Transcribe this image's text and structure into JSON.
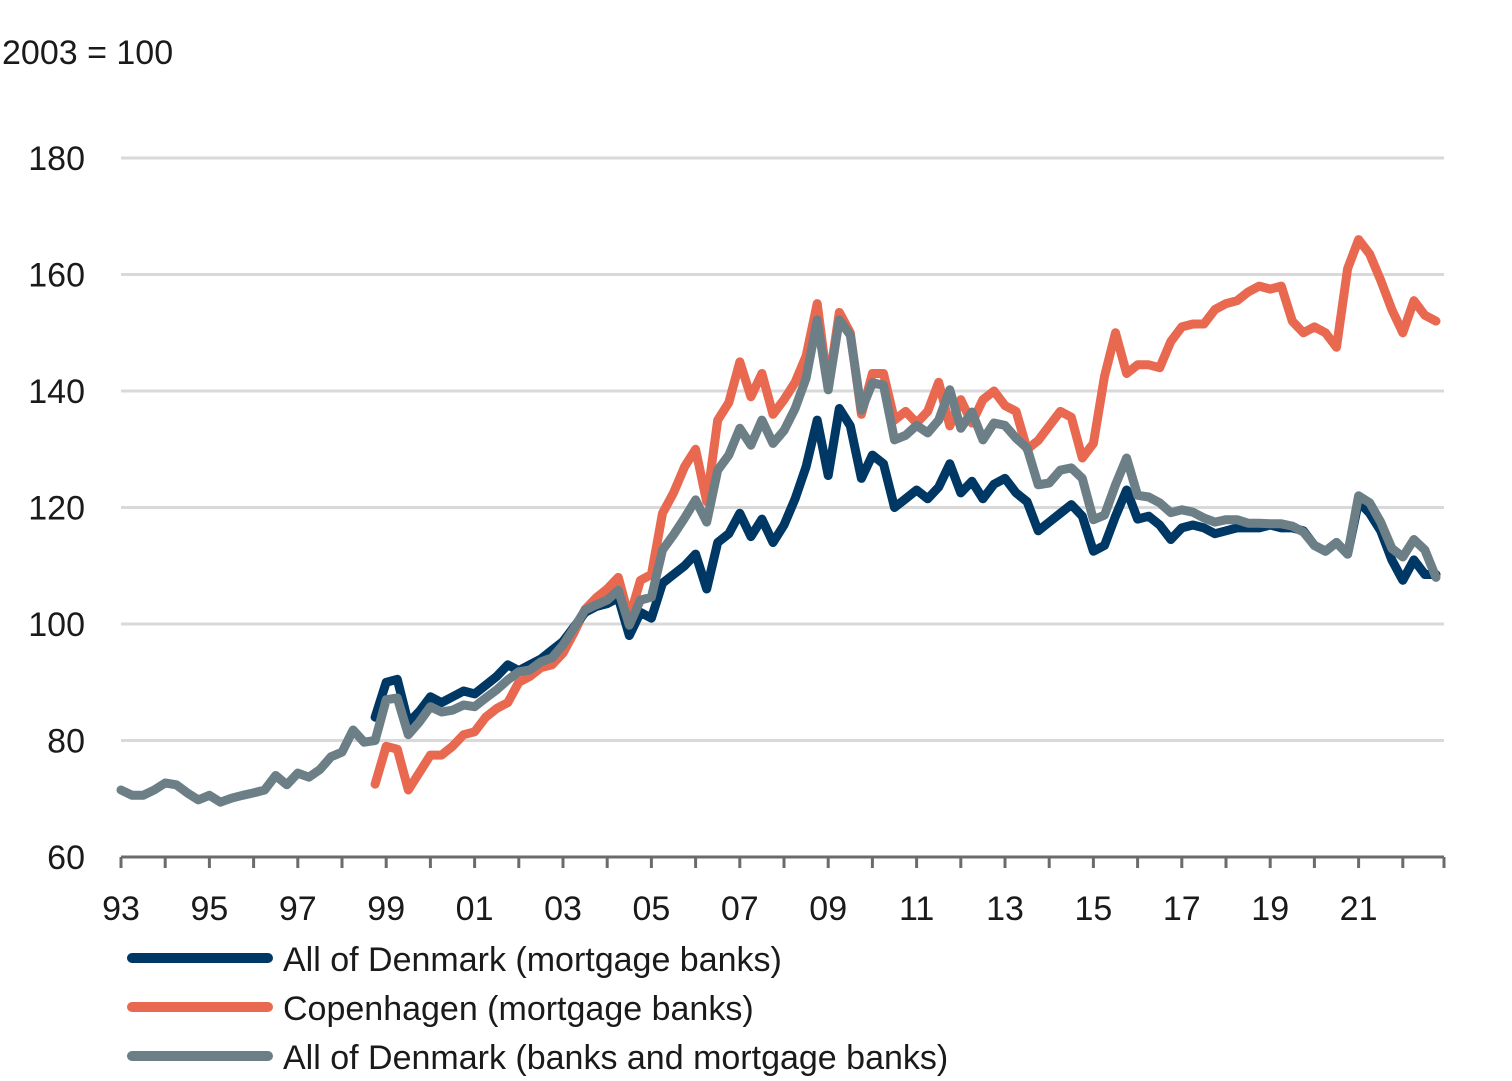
{
  "chart_data": {
    "type": "line",
    "unit_label": "2003 = 100",
    "xlabel": "",
    "ylabel": "",
    "ylim": [
      60,
      180
    ],
    "yticks": [
      60,
      80,
      100,
      120,
      140,
      160,
      180
    ],
    "xlim": [
      1993,
      2023
    ],
    "xtick_labels": [
      {
        "year": 1993,
        "label": "93"
      },
      {
        "year": 1995,
        "label": "95"
      },
      {
        "year": 1997,
        "label": "97"
      },
      {
        "year": 1999,
        "label": "99"
      },
      {
        "year": 2001,
        "label": "01"
      },
      {
        "year": 2003,
        "label": "03"
      },
      {
        "year": 2005,
        "label": "05"
      },
      {
        "year": 2007,
        "label": "07"
      },
      {
        "year": 2009,
        "label": "09"
      },
      {
        "year": 2011,
        "label": "11"
      },
      {
        "year": 2013,
        "label": "13"
      },
      {
        "year": 2015,
        "label": "15"
      },
      {
        "year": 2017,
        "label": "17"
      },
      {
        "year": 2019,
        "label": "19"
      },
      {
        "year": 2021,
        "label": "21"
      }
    ],
    "grid": true,
    "legend_position": "bottom-left",
    "frequency": "quarterly",
    "series": [
      {
        "name": "Copenhagen (mortgage banks)",
        "color": "#E8694F",
        "start": 1998.75,
        "values": [
          72.5,
          79,
          78.5,
          71.5,
          74.5,
          77.5,
          77.5,
          79,
          81,
          81.5,
          84,
          85.5,
          86.5,
          90,
          91,
          92.5,
          93,
          95,
          98.5,
          102.5,
          104.5,
          106,
          108,
          101,
          107.5,
          108.5,
          119,
          122.5,
          127,
          130,
          121,
          135,
          138,
          145,
          139,
          143,
          136,
          138.5,
          141.5,
          146,
          155,
          140.5,
          153.5,
          150,
          136,
          143,
          143,
          135,
          136.5,
          134.5,
          136.5,
          141.5,
          134,
          138.5,
          134.5,
          138.5,
          140,
          137.5,
          136.5,
          130,
          131.5,
          134,
          136.5,
          135.5,
          128.5,
          131,
          142.5,
          150,
          143,
          144.5,
          144.5,
          144,
          148.5,
          151,
          151.5,
          151.5,
          154,
          155,
          155.5,
          157,
          158,
          157.5,
          158,
          152,
          150,
          151,
          150,
          147.5,
          161,
          166,
          163.5,
          159,
          154,
          150,
          155.5,
          153,
          152
        ]
      },
      {
        "name": "All of Denmark (mortgage banks)",
        "color": "#003865",
        "start": 1998.75,
        "values": [
          84,
          90,
          90.5,
          83,
          85,
          87.5,
          86.5,
          87.5,
          88.5,
          88,
          89.5,
          91,
          93,
          92,
          93,
          94,
          95.5,
          97,
          99.5,
          102,
          103,
          103.5,
          104.5,
          98,
          102,
          101,
          107,
          108.5,
          110,
          112,
          106,
          114,
          115.5,
          119,
          115,
          118,
          114,
          117,
          121.5,
          127,
          135,
          125.5,
          137,
          134,
          125,
          129,
          127.5,
          120,
          121.5,
          123,
          121.5,
          123.5,
          127.5,
          122.5,
          124.5,
          121.5,
          124,
          125,
          122.5,
          121,
          116,
          117.5,
          119,
          120.5,
          118.5,
          112.5,
          113.5,
          118.5,
          123,
          118,
          118.5,
          117,
          114.5,
          116.5,
          117,
          116.5,
          115.5,
          116,
          116.5,
          116.5,
          116.5,
          117,
          116.5,
          116.5,
          116,
          113.5,
          112.5,
          114,
          112,
          121,
          119,
          116,
          111,
          107.5,
          111,
          108.5,
          108.5
        ]
      },
      {
        "name": "All of Denmark (banks and mortgage banks)",
        "color": "#6C7F86",
        "start": 1993.0,
        "values": [
          71.5,
          70.6,
          70.6,
          71.5,
          72.7,
          72.4,
          71,
          69.8,
          70.6,
          69.4,
          70.1,
          70.6,
          71,
          71.5,
          74,
          72.4,
          74.4,
          73.7,
          75,
          77.2,
          78,
          81.8,
          79.7,
          80,
          87,
          87.3,
          81,
          83.2,
          85.8,
          84.9,
          85.2,
          86.1,
          85.8,
          87.3,
          88.7,
          90.4,
          91.8,
          92.1,
          93.5,
          94.2,
          96.4,
          99.3,
          102.4,
          103.3,
          104.1,
          105.8,
          99.8,
          104.1,
          104.6,
          112.7,
          115.3,
          118.2,
          121.3,
          117.5,
          126.4,
          129,
          133.6,
          130.7,
          135,
          131,
          133.2,
          137,
          142.2,
          152.2,
          140.2,
          152.2,
          149.6,
          136.7,
          141.4,
          141,
          131.6,
          132.4,
          134.1,
          132.8,
          135,
          140.2,
          133.6,
          136.4,
          131.6,
          134.5,
          134.1,
          131.9,
          130.2,
          123.9,
          124.2,
          126.4,
          126.8,
          125,
          117.9,
          118.7,
          123.9,
          128.5,
          122.1,
          121.8,
          120.8,
          119.1,
          119.6,
          119.2,
          118.2,
          117.5,
          117.9,
          117.9,
          117.3,
          117.3,
          117.2,
          117.2,
          116.8,
          115.8,
          113.5,
          112.5,
          114,
          112,
          122,
          120.8,
          117.5,
          113,
          111.5,
          114.5,
          112.7,
          108
        ]
      }
    ]
  },
  "legend": {
    "items": [
      {
        "label": "All of Denmark (mortgage banks)",
        "color": "#003865"
      },
      {
        "label": "Copenhagen (mortgage banks)",
        "color": "#E8694F"
      },
      {
        "label": "All of Denmark (banks and mortgage banks)",
        "color": "#6C7F86"
      }
    ]
  }
}
